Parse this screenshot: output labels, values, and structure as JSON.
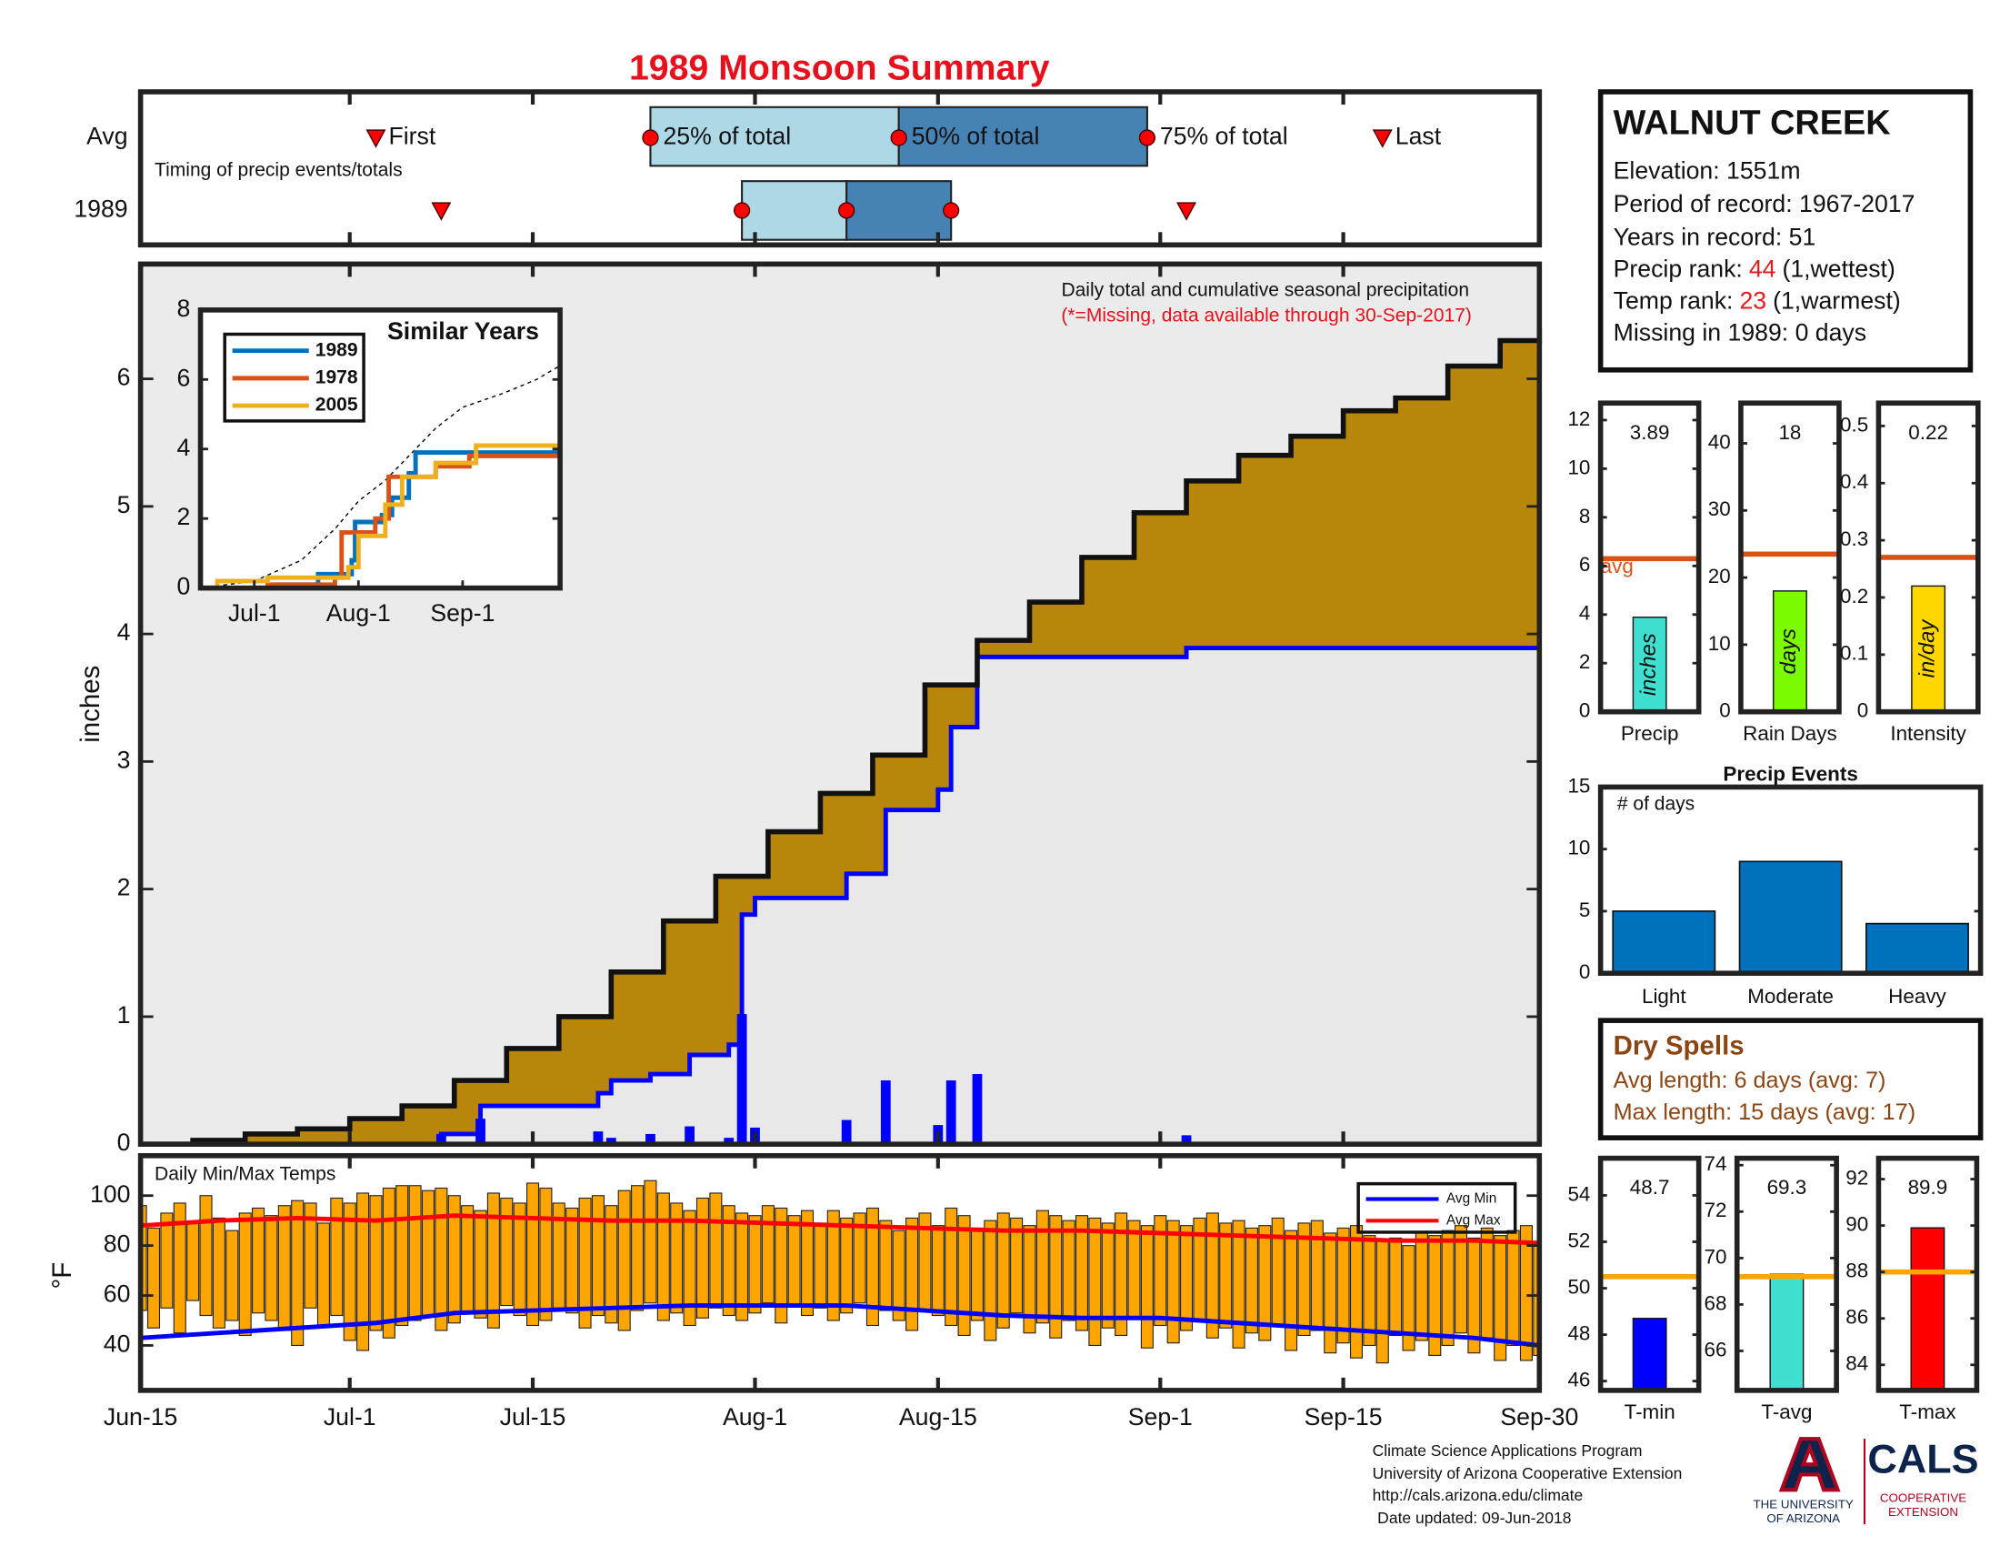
{
  "title": "1989 Monsoon Summary",
  "chart_data": [
    {
      "type": "timing",
      "subtitle": "Timing of precip events/totals",
      "xlim": [
        0,
        107
      ],
      "marker_color": "#ff0000",
      "box_colors": [
        "#add8e6",
        "#4682b4"
      ],
      "labels": {
        "first": "First",
        "p25": "25% of total",
        "p50": "50% of total",
        "p75": "75% of total",
        "last": "Last"
      },
      "rows": [
        {
          "name": "Avg",
          "first": 18,
          "p25": 39,
          "p50": 58,
          "p75": 77,
          "last": 95
        },
        {
          "name": "1989",
          "first": 23,
          "p25": 46,
          "p50": 54,
          "p75": 62,
          "last": 80
        }
      ]
    },
    {
      "type": "cumulative",
      "annotation": "Daily total and cumulative seasonal precipitation",
      "note": "(*=Missing, data available through 30-Sep-2017)",
      "ylabel": "inches",
      "xlim": [
        0,
        107
      ],
      "ylim": [
        0,
        6.9
      ],
      "yticks": [
        0,
        1,
        2,
        3,
        4,
        5,
        6
      ],
      "average": {
        "color": "#b8860b",
        "x": [
          0,
          4,
          8,
          12,
          16,
          20,
          24,
          28,
          32,
          36,
          40,
          44,
          48,
          52,
          56,
          60,
          64,
          68,
          72,
          76,
          80,
          84,
          88,
          92,
          96,
          100,
          104,
          107
        ],
        "values": [
          0,
          0.03,
          0.08,
          0.12,
          0.2,
          0.3,
          0.5,
          0.75,
          1.0,
          1.35,
          1.75,
          2.1,
          2.45,
          2.75,
          3.05,
          3.6,
          3.95,
          4.25,
          4.6,
          4.95,
          5.2,
          5.4,
          5.55,
          5.75,
          5.85,
          6.1,
          6.3,
          6.4
        ]
      },
      "cumulative": {
        "color": "#0000ff",
        "x": [
          0,
          23,
          26,
          35,
          36,
          39,
          42,
          45,
          46,
          47,
          54,
          57,
          61,
          62,
          64,
          80,
          107
        ],
        "values": [
          0,
          0.08,
          0.3,
          0.4,
          0.5,
          0.55,
          0.7,
          0.78,
          1.8,
          1.93,
          2.12,
          2.62,
          2.78,
          3.27,
          3.82,
          3.89,
          3.89
        ]
      },
      "daily": {
        "color": "#0000ff",
        "x": [
          23,
          26,
          35,
          36,
          39,
          42,
          45,
          46,
          47,
          54,
          57,
          61,
          62,
          64,
          80
        ],
        "values": [
          0.08,
          0.2,
          0.1,
          0.05,
          0.08,
          0.14,
          0.05,
          1.02,
          0.13,
          0.19,
          0.5,
          0.15,
          0.5,
          0.55,
          0.07
        ]
      }
    },
    {
      "type": "minmax",
      "title": "Daily Min/Max Temps",
      "ylabel": "°F",
      "xlim": [
        0,
        107
      ],
      "ylim": [
        22,
        116
      ],
      "yticks": [
        40,
        60,
        80,
        100
      ],
      "xticks": [
        {
          "value": 0,
          "label": "Jun-15"
        },
        {
          "value": 16,
          "label": "Jul-1"
        },
        {
          "value": 30,
          "label": "Jul-15"
        },
        {
          "value": 47,
          "label": "Aug-1"
        },
        {
          "value": 61,
          "label": "Aug-15"
        },
        {
          "value": 78,
          "label": "Sep-1"
        },
        {
          "value": 92,
          "label": "Sep-15"
        },
        {
          "value": 107,
          "label": "Sep-30"
        }
      ],
      "bar_color": "#ffa500",
      "daily_max": [
        96,
        87,
        93,
        97,
        89,
        100,
        91,
        86,
        93,
        95,
        92,
        96,
        98,
        97,
        89,
        99,
        97,
        101,
        100,
        103,
        104,
        104,
        102,
        103,
        100,
        96,
        94,
        101,
        99,
        97,
        105,
        103,
        97,
        95,
        99,
        100,
        96,
        102,
        104,
        106,
        101,
        97,
        94,
        99,
        101,
        96,
        93,
        92,
        96,
        95,
        92,
        94,
        89,
        94,
        91,
        93,
        95,
        90,
        86,
        91,
        93,
        88,
        95,
        92,
        87,
        90,
        93,
        91,
        88,
        94,
        92,
        90,
        92,
        91,
        89,
        93,
        90,
        88,
        92,
        90,
        88,
        91,
        93,
        89,
        90,
        87,
        88,
        91,
        86,
        89,
        90,
        85,
        87,
        88,
        84,
        82,
        83,
        80,
        85,
        84,
        86,
        88,
        83,
        87,
        84,
        86,
        88,
        80
      ],
      "daily_min": [
        54,
        47,
        55,
        45,
        58,
        52,
        47,
        50,
        44,
        53,
        50,
        46,
        40,
        55,
        48,
        52,
        42,
        38,
        46,
        43,
        48,
        50,
        52,
        46,
        49,
        53,
        51,
        47,
        56,
        52,
        48,
        50,
        55,
        53,
        47,
        52,
        49,
        46,
        54,
        57,
        50,
        53,
        48,
        51,
        55,
        52,
        50,
        53,
        57,
        49,
        56,
        52,
        55,
        50,
        53,
        57,
        48,
        54,
        50,
        46,
        54,
        52,
        48,
        44,
        50,
        42,
        47,
        53,
        45,
        49,
        43,
        50,
        46,
        40,
        47,
        44,
        51,
        39,
        48,
        41,
        46,
        50,
        43,
        47,
        39,
        45,
        42,
        48,
        38,
        44,
        46,
        37,
        41,
        35,
        40,
        33,
        44,
        38,
        42,
        36,
        40,
        45,
        37,
        43,
        34,
        40,
        34,
        36
      ],
      "series": [
        {
          "name": "Avg Min",
          "color": "#0000ff",
          "x": [
            0,
            6,
            12,
            18,
            24,
            30,
            36,
            42,
            48,
            54,
            60,
            66,
            72,
            78,
            84,
            90,
            96,
            102,
            107
          ],
          "values": [
            43,
            45,
            47,
            49,
            53,
            54,
            55,
            56,
            56,
            56,
            54,
            52,
            51,
            51,
            49,
            47,
            45,
            43,
            40
          ]
        },
        {
          "name": "Avg Max",
          "color": "#ff0000",
          "x": [
            0,
            6,
            12,
            18,
            24,
            30,
            36,
            42,
            48,
            54,
            60,
            66,
            72,
            78,
            84,
            90,
            96,
            102,
            107
          ],
          "values": [
            88,
            90,
            91,
            90,
            92,
            91,
            90,
            90,
            89,
            88,
            87,
            86,
            86,
            85,
            84,
            83,
            82,
            82,
            81
          ]
        }
      ]
    },
    {
      "type": "line",
      "title": "Similar Years",
      "xlim": [
        0,
        107
      ],
      "ylim": [
        0,
        8
      ],
      "yticks": [
        0,
        2,
        4,
        6,
        8
      ],
      "xticks": [
        {
          "value": 16,
          "label": "Jul-1"
        },
        {
          "value": 47,
          "label": "Aug-1"
        },
        {
          "value": 78,
          "label": "Sep-1"
        }
      ],
      "series": [
        {
          "name": "1989",
          "color": "#0072bd",
          "x": [
            0,
            23,
            35,
            45,
            46,
            54,
            57,
            62,
            64,
            107
          ],
          "values": [
            0,
            0.1,
            0.4,
            0.8,
            1.9,
            2.1,
            2.6,
            3.3,
            3.9,
            3.9
          ]
        },
        {
          "name": "1978",
          "color": "#d95319",
          "x": [
            0,
            20,
            40,
            42,
            52,
            56,
            70,
            80,
            107
          ],
          "values": [
            0,
            0.1,
            0.3,
            1.6,
            2.0,
            3.2,
            3.5,
            3.8,
            3.8
          ]
        },
        {
          "name": "2005",
          "color": "#edb120",
          "x": [
            0,
            5,
            20,
            44,
            47,
            55,
            60,
            70,
            82,
            107
          ],
          "values": [
            0,
            0.2,
            0.3,
            0.6,
            1.5,
            2.4,
            3.2,
            3.6,
            4.1,
            4.1
          ]
        }
      ],
      "average": {
        "color": "#000000",
        "x": [
          0,
          16,
          30,
          40,
          47,
          55,
          61,
          70,
          78,
          90,
          100,
          107
        ],
        "values": [
          0,
          0.2,
          0.8,
          1.7,
          2.5,
          3.1,
          3.7,
          4.6,
          5.2,
          5.6,
          6.0,
          6.4
        ]
      }
    },
    {
      "type": "gauge",
      "xlabel": "Precip",
      "value": 3.89,
      "bar_label": "inches",
      "avg": 6.3,
      "avg_label": "avg",
      "avg_color": "#d95319",
      "color": "#40e0d0",
      "ylim": [
        0,
        12.7
      ],
      "yticks": [
        0,
        2,
        4,
        6,
        8,
        10,
        12
      ]
    },
    {
      "type": "gauge",
      "xlabel": "Rain Days",
      "value": 18,
      "bar_label": "days",
      "avg": 23.5,
      "avg_color": "#d95319",
      "color": "#7cfc00",
      "ylim": [
        0,
        46
      ],
      "yticks": [
        0,
        10,
        20,
        30,
        40
      ]
    },
    {
      "type": "gauge",
      "xlabel": "Intensity",
      "value": 0.22,
      "bar_label": "in/day",
      "avg": 0.27,
      "avg_color": "#d95319",
      "color": "#ffd700",
      "ylim": [
        0,
        0.54
      ],
      "yticks": [
        0,
        0.1,
        0.2,
        0.3,
        0.4,
        0.5
      ]
    },
    {
      "type": "bar",
      "title": "Precip Events",
      "annotation": "# of days",
      "categories": [
        "Light",
        "Moderate",
        "Heavy"
      ],
      "values": [
        5,
        9,
        4
      ],
      "color": "#0072bd",
      "ylim": [
        0,
        15
      ],
      "yticks": [
        0,
        5,
        10,
        15
      ]
    },
    {
      "type": "gauge",
      "xlabel": "T-min",
      "value": 48.7,
      "avg": 50.5,
      "avg_color": "#ffa500",
      "color": "#0000ff",
      "ylim": [
        45.6,
        55.6
      ],
      "yticks": [
        46,
        48,
        50,
        52,
        54
      ]
    },
    {
      "type": "gauge",
      "xlabel": "T-avg",
      "value": 69.3,
      "avg": 69.2,
      "avg_color": "#ffa500",
      "color": "#40e0d0",
      "ylim": [
        64.3,
        74.3
      ],
      "yticks": [
        66,
        68,
        70,
        72,
        74
      ]
    },
    {
      "type": "gauge",
      "xlabel": "T-max",
      "value": 89.9,
      "avg": 88.0,
      "avg_color": "#ffa500",
      "color": "#ff0000",
      "ylim": [
        82.9,
        92.9
      ],
      "yticks": [
        84,
        86,
        88,
        90,
        92
      ]
    }
  ],
  "station": {
    "name": "WALNUT CREEK",
    "lines": [
      "Elevation: 1551m",
      "Period of record: 1967-2017",
      "Years in record: 51"
    ],
    "precip_rank": {
      "label": "Precip rank:",
      "value": 44,
      "note": "(1,wettest)"
    },
    "temp_rank": {
      "label": "Temp rank:",
      "value": 23,
      "note": "(1,warmest)"
    },
    "missing": "Missing in 1989: 0 days",
    "rank_color": "#e41a1c"
  },
  "dry_spells": {
    "title": "Dry Spells",
    "lines": [
      "Avg length: 6 days (avg: 7)",
      "Max length: 15 days (avg: 17)"
    ],
    "color": "#8b4513"
  },
  "footer": {
    "credits": [
      "Climate Science Applications Program",
      "University of Arizona Cooperative Extension",
      "http://cals.arizona.edu/climate",
      "Date updated: 09-Jun-2018"
    ],
    "logo_ua": [
      "THE UNIVERSITY",
      "OF ARIZONA"
    ],
    "logo_cals": "CALS",
    "logo_cals_sub": [
      "COOPERATIVE",
      "EXTENSION"
    ]
  }
}
